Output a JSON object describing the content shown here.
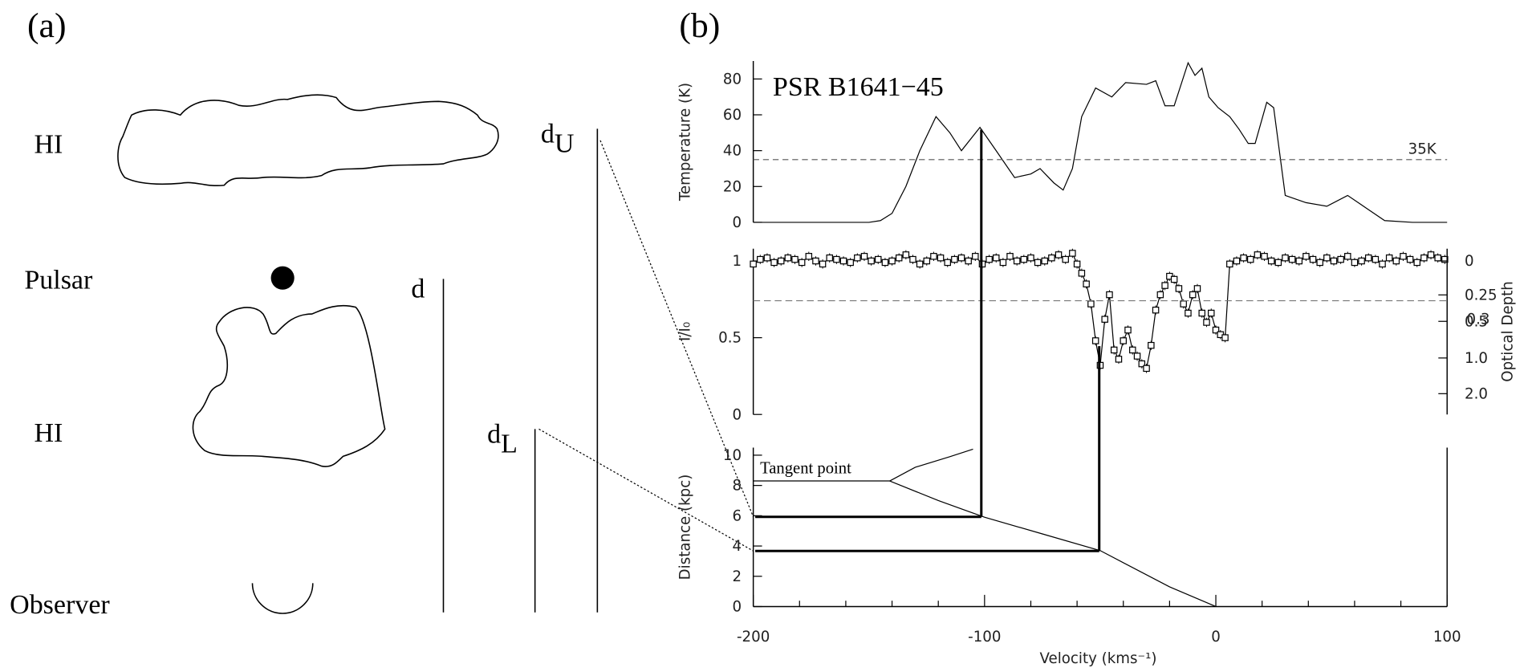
{
  "diagram": {
    "label": "(a)",
    "cloud_far": "HI",
    "pulsar": "Pulsar",
    "cloud_near": "HI",
    "observer": "Observer",
    "d": "d",
    "d_upper": {
      "base": "d",
      "sub": "U"
    },
    "d_lower": {
      "base": "d",
      "sub": "L"
    }
  },
  "panel_label": "(b)",
  "chart_data": [
    {
      "type": "line",
      "title": "PSR B1641−45",
      "ylabel": "Temperature (K)",
      "color": "#000000",
      "xlim": [
        -200,
        100
      ],
      "ylim": [
        0,
        90
      ],
      "yticks": [
        0,
        20,
        40,
        60,
        80
      ],
      "reference": {
        "value": 35,
        "label": "35K"
      },
      "x": [
        -200,
        -150,
        -145,
        -140,
        -134,
        -128,
        -121,
        -115,
        -110,
        -102,
        -95,
        -87,
        -80,
        -76,
        -70,
        -66,
        -62,
        -58,
        -52,
        -45,
        -39,
        -30,
        -26,
        -22,
        -18,
        -12,
        -9,
        -6,
        -3,
        1,
        6,
        10,
        14,
        17,
        22,
        25,
        30,
        39,
        48,
        57,
        65,
        73,
        85,
        100
      ],
      "values": [
        0,
        0,
        1,
        5,
        20,
        40,
        59,
        50,
        40,
        53,
        40,
        25,
        27,
        30,
        22,
        18,
        30,
        59,
        75,
        70,
        78,
        77,
        79,
        65,
        65,
        89,
        82,
        86,
        70,
        64,
        59,
        52,
        44,
        44,
        67,
        64,
        15,
        11,
        9,
        15,
        8,
        1,
        0,
        0
      ]
    },
    {
      "type": "line-markers",
      "ylabel": "I/I₀",
      "y2label": "Optical Depth",
      "color": "#000000",
      "marker": "square",
      "xlim": [
        -200,
        100
      ],
      "ylim": [
        0,
        1.08
      ],
      "yticks": [
        0,
        0.5,
        1
      ],
      "y2_transform": "exp-neg",
      "y2ticks": [
        0,
        0.25,
        0.5,
        {
          "value": 1,
          "label": "1.0"
        },
        {
          "value": 2,
          "label": "2.0"
        }
      ],
      "reference": 0.3,
      "error": 0.03,
      "x": [
        -200,
        -197,
        -194,
        -191,
        -188,
        -185,
        -182,
        -179,
        -176,
        -173,
        -170,
        -167,
        -164,
        -161,
        -158,
        -155,
        -152,
        -149,
        -146,
        -143,
        -140,
        -137,
        -134,
        -131,
        -128,
        -125,
        -122,
        -119,
        -116,
        -113,
        -110,
        -107,
        -104,
        -101,
        -98,
        -95,
        -92,
        -89,
        -86,
        -83,
        -80,
        -77,
        -74,
        -71,
        -68,
        -65,
        -62,
        -60,
        -58,
        -56,
        -54,
        -52,
        -50,
        -48,
        -46,
        -44,
        -42,
        -40,
        -38,
        -36,
        -34,
        -32,
        -30,
        -28,
        -26,
        -24,
        -22,
        -20,
        -18,
        -16,
        -14,
        -12,
        -10,
        -8,
        -6,
        -4,
        -2,
        0,
        2,
        4,
        6,
        9,
        12,
        15,
        18,
        21,
        24,
        27,
        30,
        33,
        36,
        39,
        42,
        45,
        48,
        51,
        54,
        57,
        60,
        63,
        66,
        69,
        72,
        75,
        78,
        81,
        84,
        87,
        90,
        93,
        96,
        99
      ],
      "values": [
        0.98,
        1.01,
        1.02,
        0.99,
        1.0,
        1.02,
        1.01,
        0.99,
        1.03,
        1.0,
        0.98,
        1.02,
        1.01,
        1.0,
        0.99,
        1.02,
        1.03,
        1.0,
        1.01,
        0.99,
        1.0,
        1.02,
        1.04,
        1.01,
        0.98,
        1.0,
        1.03,
        1.02,
        0.99,
        1.01,
        1.02,
        1.0,
        1.03,
        0.98,
        1.01,
        1.02,
        0.99,
        1.03,
        1.0,
        1.01,
        1.02,
        0.99,
        1.0,
        1.02,
        1.04,
        1.01,
        1.05,
        0.98,
        0.92,
        0.85,
        0.72,
        0.48,
        0.32,
        0.62,
        0.78,
        0.42,
        0.36,
        0.48,
        0.55,
        0.42,
        0.38,
        0.33,
        0.3,
        0.45,
        0.68,
        0.78,
        0.84,
        0.9,
        0.88,
        0.82,
        0.72,
        0.66,
        0.78,
        0.82,
        0.66,
        0.6,
        0.66,
        0.55,
        0.52,
        0.5,
        0.98,
        1.0,
        1.02,
        1.01,
        1.04,
        1.03,
        1.0,
        0.99,
        1.02,
        1.01,
        1.0,
        1.03,
        1.01,
        0.99,
        1.02,
        1.0,
        1.01,
        1.03,
        0.99,
        1.0,
        1.02,
        1.01,
        0.98,
        1.02,
        1.0,
        1.03,
        1.01,
        0.99,
        1.02,
        1.04,
        1.02,
        1.01
      ]
    },
    {
      "type": "line",
      "xlabel": "Velocity (kms⁻¹)",
      "ylabel": "Distance (kpc)",
      "color": "#000000",
      "xlim": [
        -200,
        100
      ],
      "ylim": [
        0,
        10.5
      ],
      "yticks": [
        0,
        2,
        4,
        6,
        8,
        10
      ],
      "xticks": [
        -200,
        -100,
        0,
        100
      ],
      "xminorticks": [
        -180,
        -160,
        -140,
        -120,
        -80,
        -60,
        -40,
        -20,
        20,
        40,
        60,
        80
      ],
      "tangent_label": "Tangent point",
      "x": [
        0,
        -20,
        -50,
        -75,
        -100,
        -120,
        -141,
        -130,
        -115,
        -105
      ],
      "values": [
        0,
        1.3,
        3.7,
        4.8,
        5.9,
        7.0,
        8.3,
        9.2,
        9.9,
        10.4
      ]
    }
  ]
}
